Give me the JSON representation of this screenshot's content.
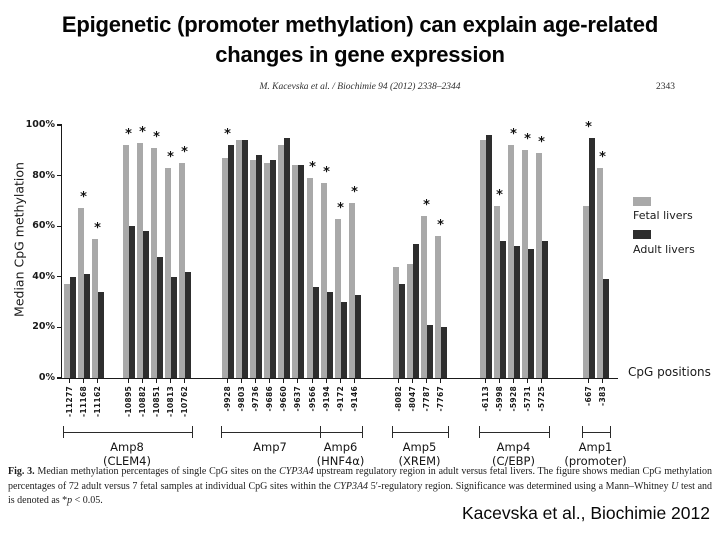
{
  "slide": {
    "title_line1": "Epigenetic (promoter methylation) can explain age-related",
    "title_line2": "changes in gene expression",
    "citation": "Kacevska et al., Biochimie 2012"
  },
  "paper": {
    "running_head": "M. Kacevska et al. / Biochimie 94 (2012) 2338–2344",
    "page_number": "2343",
    "caption_segments": [
      {
        "text": "Fig. 3.",
        "style": "b"
      },
      {
        "text": " Median methylation percentages of single CpG sites on the ",
        "style": ""
      },
      {
        "text": "CYP3A4",
        "style": "i"
      },
      {
        "text": " upstream regulatory region in adult versus fetal livers. The figure shows median CpG methylation percentages of 72 adult versus 7 fetal samples at individual CpG sites within the ",
        "style": ""
      },
      {
        "text": "CYP3A4",
        "style": "i"
      },
      {
        "text": " 5′-regulatory region. Significance was determined using a Mann–Whitney ",
        "style": ""
      },
      {
        "text": "U",
        "style": "i"
      },
      {
        "text": " test and is denoted as *",
        "style": ""
      },
      {
        "text": "p",
        "style": "i"
      },
      {
        "text": " < 0.05.",
        "style": ""
      }
    ]
  },
  "chart_data": {
    "type": "bar",
    "title": "",
    "ylabel": "Median CpG methylation",
    "xlabel": "CpG positions",
    "ylim": [
      0,
      100
    ],
    "yticks": [
      "0%",
      "20%",
      "40%",
      "60%",
      "80%",
      "100%"
    ],
    "legend_position": "right",
    "grid": false,
    "significance_marker": "*",
    "legend": [
      {
        "name": "Fetal livers",
        "color": "#a9a9a9"
      },
      {
        "name": "Adult livers",
        "color": "#2e2e2e"
      }
    ],
    "groups": [
      {
        "amp": "Amp8",
        "region": "(CLEM4)",
        "points": [
          {
            "pos": "-11277",
            "fetal": 37,
            "adult": 40,
            "sig": false
          },
          {
            "pos": "-11168",
            "fetal": 67,
            "adult": 41,
            "sig": true
          },
          {
            "pos": "-11162",
            "fetal": 55,
            "adult": 34,
            "sig": true
          },
          {
            "pos": "-10895",
            "fetal": 92,
            "adult": 60,
            "sig": true
          },
          {
            "pos": "-10882",
            "fetal": 93,
            "adult": 58,
            "sig": true
          },
          {
            "pos": "-10851",
            "fetal": 91,
            "adult": 48,
            "sig": true
          },
          {
            "pos": "-10813",
            "fetal": 83,
            "adult": 40,
            "sig": true
          },
          {
            "pos": "-10762",
            "fetal": 85,
            "adult": 42,
            "sig": true
          }
        ]
      },
      {
        "amp": "Amp7",
        "region": "",
        "points": [
          {
            "pos": "-9928",
            "fetal": 87,
            "adult": 92,
            "sig": true
          },
          {
            "pos": "-9803",
            "fetal": 94,
            "adult": 94,
            "sig": false
          },
          {
            "pos": "-9736",
            "fetal": 86,
            "adult": 88,
            "sig": false
          },
          {
            "pos": "-9686",
            "fetal": 85,
            "adult": 86,
            "sig": false
          },
          {
            "pos": "-9660",
            "fetal": 92,
            "adult": 95,
            "sig": false
          },
          {
            "pos": "-9637",
            "fetal": 84,
            "adult": 84,
            "sig": false
          },
          {
            "pos": "-9566",
            "fetal": 79,
            "adult": 36,
            "sig": true
          }
        ]
      },
      {
        "amp": "Amp6",
        "region": "(HNF4α)",
        "points": [
          {
            "pos": "-9194",
            "fetal": 77,
            "adult": 34,
            "sig": true
          },
          {
            "pos": "-9172",
            "fetal": 63,
            "adult": 30,
            "sig": true
          },
          {
            "pos": "-9146",
            "fetal": 69,
            "adult": 33,
            "sig": true
          }
        ]
      },
      {
        "amp": "Amp5",
        "region": "(XREM)",
        "points": [
          {
            "pos": "-8082",
            "fetal": 44,
            "adult": 37,
            "sig": false
          },
          {
            "pos": "-8047",
            "fetal": 45,
            "adult": 53,
            "sig": false
          },
          {
            "pos": "-7787",
            "fetal": 64,
            "adult": 21,
            "sig": true
          },
          {
            "pos": "-7767",
            "fetal": 56,
            "adult": 20,
            "sig": true
          }
        ]
      },
      {
        "amp": "Amp4",
        "region": "(C/EBP)",
        "points": [
          {
            "pos": "-6113",
            "fetal": 94,
            "adult": 96,
            "sig": false
          },
          {
            "pos": "-5998",
            "fetal": 68,
            "adult": 54,
            "sig": true
          },
          {
            "pos": "-5928",
            "fetal": 92,
            "adult": 52,
            "sig": true
          },
          {
            "pos": "-5731",
            "fetal": 90,
            "adult": 51,
            "sig": true
          },
          {
            "pos": "-5725",
            "fetal": 89,
            "adult": 54,
            "sig": true
          }
        ]
      },
      {
        "amp": "Amp1",
        "region": "(promoter)",
        "points": [
          {
            "pos": "-667",
            "fetal": 68,
            "adult": 95,
            "sig": true
          },
          {
            "pos": "-383",
            "fetal": 83,
            "adult": 39,
            "sig": true
          }
        ]
      }
    ]
  }
}
